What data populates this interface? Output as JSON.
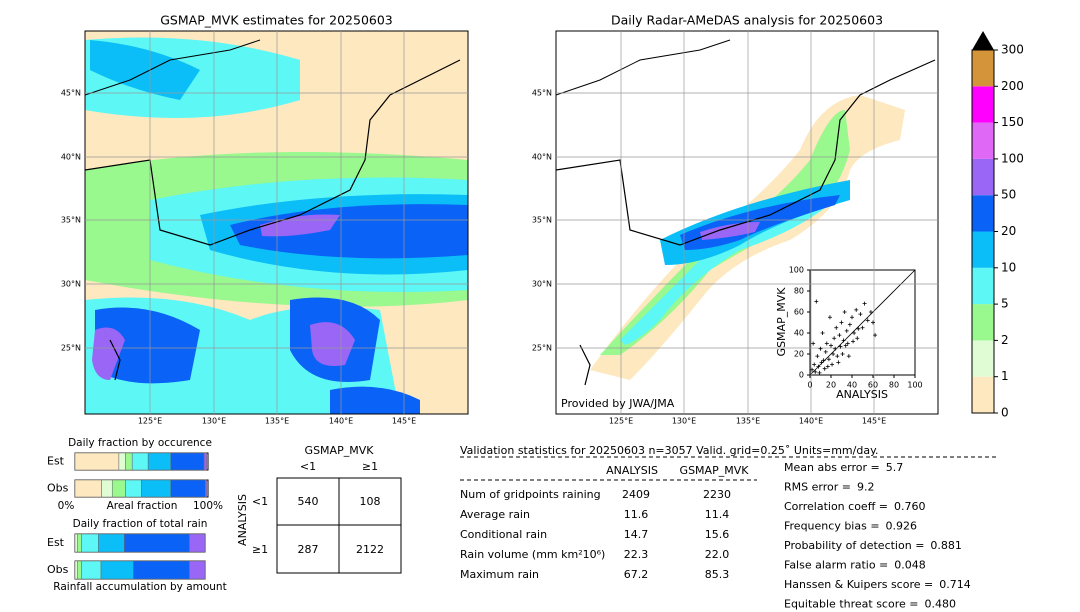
{
  "left_map": {
    "title": "GSMAP_MVK estimates for 20250603",
    "lat_labels": [
      "45°N",
      "40°N",
      "35°N",
      "30°N",
      "25°N"
    ],
    "lon_labels": [
      "125°E",
      "130°E",
      "135°E",
      "140°E",
      "145°E"
    ]
  },
  "right_map": {
    "title": "Daily Radar-AMeDAS analysis for 20250603",
    "lat_labels": [
      "45°N",
      "40°N",
      "35°N",
      "30°N",
      "25°N"
    ],
    "lon_labels": [
      "125°E",
      "130°E",
      "135°E",
      "140°E",
      "145°E"
    ],
    "credit": "Provided by JWA/JMA"
  },
  "colorbar": {
    "levels": [
      0,
      1,
      2,
      5,
      10,
      20,
      50,
      100,
      150,
      200,
      300
    ],
    "colors": [
      "#fde8bf",
      "#e0fcd5",
      "#99f88e",
      "#5df7f6",
      "#0bbef7",
      "#0a62f6",
      "#9966f5",
      "#df68f7",
      "#ff00ff",
      "#d4953a"
    ],
    "extend_color": "#000000"
  },
  "scatter": {
    "xlabel": "ANALYSIS",
    "ylabel": "GSMAP_MVK",
    "xlim": [
      0,
      100
    ],
    "ylim": [
      0,
      100
    ],
    "xticks": [
      0,
      20,
      40,
      60,
      80,
      100
    ],
    "yticks": [
      0,
      20,
      40,
      60,
      80,
      100
    ],
    "x": [
      2,
      4,
      5,
      7,
      8,
      10,
      11,
      12,
      14,
      15,
      16,
      18,
      19,
      20,
      22,
      23,
      25,
      26,
      28,
      29,
      30,
      32,
      33,
      35,
      36,
      38,
      40,
      42,
      44,
      45,
      48,
      50,
      52,
      55,
      58,
      60,
      3,
      6,
      9,
      13,
      17,
      21,
      24,
      27,
      31,
      34,
      37,
      41,
      46,
      62
    ],
    "y": [
      5,
      10,
      3,
      18,
      8,
      25,
      12,
      40,
      6,
      22,
      30,
      15,
      55,
      28,
      20,
      35,
      45,
      18,
      38,
      27,
      50,
      33,
      60,
      42,
      30,
      48,
      55,
      40,
      62,
      35,
      58,
      45,
      68,
      52,
      60,
      50,
      30,
      70,
      2,
      14,
      8,
      10,
      25,
      12,
      20,
      28,
      18,
      32,
      44,
      38
    ]
  },
  "occurrence": {
    "title": "Daily fraction by occurence",
    "rows": [
      "Est",
      "Obs"
    ],
    "est": [
      33,
      5,
      5,
      12,
      17,
      25,
      2
    ],
    "obs": [
      20,
      8,
      10,
      12,
      22,
      26,
      1
    ],
    "colors": [
      "#fde8bf",
      "#e0fcd5",
      "#99f88e",
      "#5df7f6",
      "#0bbef7",
      "#0a62f6",
      "#9966f5"
    ],
    "xlabel": "Areal fraction",
    "left_label": "0%",
    "right_label": "100%"
  },
  "total_rain": {
    "title": "Daily fraction of total rain",
    "rows": [
      "Est",
      "Obs"
    ],
    "est": [
      2,
      3,
      13,
      20,
      50,
      12
    ],
    "obs": [
      2,
      3,
      15,
      25,
      43,
      12
    ],
    "colors": [
      "#e0fcd5",
      "#99f88e",
      "#5df7f6",
      "#0bbef7",
      "#0a62f6",
      "#9966f5"
    ],
    "xlabel": "Rainfall accumulation by amount"
  },
  "contingency": {
    "title": "GSMAP_MVK",
    "col_labels": [
      "<1",
      "≥1"
    ],
    "row_labels": [
      "<1",
      "≥1"
    ],
    "ylabel": "ANALYSIS",
    "cells": [
      [
        540,
        108
      ],
      [
        287,
        2122
      ]
    ]
  },
  "stats": {
    "title": "Validation statistics for 20250603  n=3057 Valid. grid=0.25˚ Units=mm/day.",
    "columns": [
      "ANALYSIS",
      "GSMAP_MVK"
    ],
    "rows": [
      [
        "Num of gridpoints raining",
        "2409",
        "2230"
      ],
      [
        "Average rain",
        "11.6",
        "11.4"
      ],
      [
        "Conditional rain",
        "14.7",
        "15.6"
      ],
      [
        "Rain volume (mm km²10⁶)",
        "22.3",
        "22.0"
      ],
      [
        "Maximum rain",
        "67.2",
        "85.3"
      ]
    ],
    "scores": [
      [
        "Mean abs error =",
        "5.7"
      ],
      [
        "RMS error =",
        "9.2"
      ],
      [
        "Correlation coeff =",
        "0.760"
      ],
      [
        "Frequency bias =",
        "0.926"
      ],
      [
        "Probability of detection =",
        "0.881"
      ],
      [
        "False alarm ratio =",
        "0.048"
      ],
      [
        "Hanssen & Kuipers score =",
        "0.714"
      ],
      [
        "Equitable threat score =",
        "0.480"
      ]
    ]
  }
}
